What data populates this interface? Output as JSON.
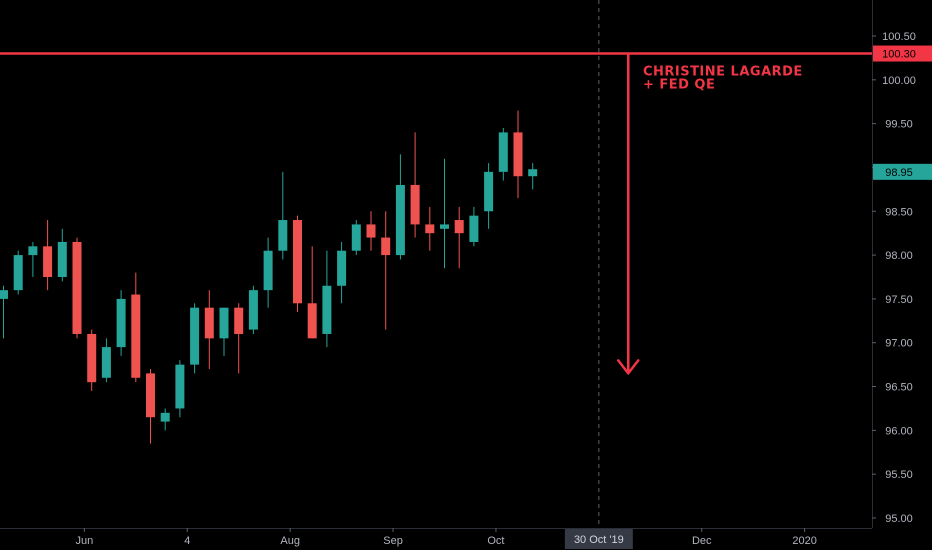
{
  "chart_data": {
    "type": "candlestick",
    "y_ticks": [
      "100.50",
      "100.00",
      "99.50",
      "99.00",
      "98.50",
      "98.00",
      "97.50",
      "97.00",
      "96.50",
      "96.00",
      "95.50",
      "95.00"
    ],
    "ylim": [
      94.95,
      101.1
    ],
    "x_ticks": [
      {
        "label": "Jun",
        "bar": 5.5
      },
      {
        "label": "4",
        "bar": 12.5
      },
      {
        "label": "Aug",
        "bar": 19.5
      },
      {
        "label": "Sep",
        "bar": 26.5
      },
      {
        "label": "Oct",
        "bar": 33.5
      },
      {
        "label": "Dec",
        "bar": 47.5
      },
      {
        "label": "2020",
        "bar": 54.5
      }
    ],
    "candles": [
      {
        "o": 97.5,
        "h": 97.65,
        "l": 97.05,
        "c": 97.6
      },
      {
        "o": 97.6,
        "h": 98.05,
        "l": 97.55,
        "c": 98.0
      },
      {
        "o": 98.0,
        "h": 98.15,
        "l": 97.75,
        "c": 98.1
      },
      {
        "o": 98.1,
        "h": 98.4,
        "l": 97.6,
        "c": 97.75
      },
      {
        "o": 97.75,
        "h": 98.3,
        "l": 97.7,
        "c": 98.15
      },
      {
        "o": 98.15,
        "h": 98.2,
        "l": 97.05,
        "c": 97.1
      },
      {
        "o": 97.1,
        "h": 97.15,
        "l": 96.45,
        "c": 96.55
      },
      {
        "o": 96.6,
        "h": 97.05,
        "l": 96.55,
        "c": 96.95
      },
      {
        "o": 96.95,
        "h": 97.6,
        "l": 96.85,
        "c": 97.5
      },
      {
        "o": 97.55,
        "h": 97.8,
        "l": 96.55,
        "c": 96.6
      },
      {
        "o": 96.65,
        "h": 96.7,
        "l": 95.85,
        "c": 96.15
      },
      {
        "o": 96.1,
        "h": 96.25,
        "l": 96.0,
        "c": 96.2
      },
      {
        "o": 96.25,
        "h": 96.8,
        "l": 96.15,
        "c": 96.75
      },
      {
        "o": 96.75,
        "h": 97.45,
        "l": 96.65,
        "c": 97.4
      },
      {
        "o": 97.4,
        "h": 97.6,
        "l": 96.7,
        "c": 97.05
      },
      {
        "o": 97.05,
        "h": 97.4,
        "l": 96.85,
        "c": 97.4
      },
      {
        "o": 97.4,
        "h": 97.45,
        "l": 96.65,
        "c": 97.1
      },
      {
        "o": 97.15,
        "h": 97.65,
        "l": 97.1,
        "c": 97.6
      },
      {
        "o": 97.6,
        "h": 98.2,
        "l": 97.4,
        "c": 98.05
      },
      {
        "o": 98.05,
        "h": 98.95,
        "l": 97.95,
        "c": 98.4
      },
      {
        "o": 98.4,
        "h": 98.45,
        "l": 97.35,
        "c": 97.45
      },
      {
        "o": 97.45,
        "h": 98.1,
        "l": 97.05,
        "c": 97.05
      },
      {
        "o": 97.1,
        "h": 98.05,
        "l": 96.95,
        "c": 97.65
      },
      {
        "o": 97.65,
        "h": 98.15,
        "l": 97.45,
        "c": 98.05
      },
      {
        "o": 98.05,
        "h": 98.4,
        "l": 98.0,
        "c": 98.35
      },
      {
        "o": 98.35,
        "h": 98.5,
        "l": 98.05,
        "c": 98.2
      },
      {
        "o": 98.2,
        "h": 98.5,
        "l": 97.15,
        "c": 98.0
      },
      {
        "o": 98.0,
        "h": 99.15,
        "l": 97.95,
        "c": 98.8
      },
      {
        "o": 98.8,
        "h": 99.4,
        "l": 98.2,
        "c": 98.35
      },
      {
        "o": 98.35,
        "h": 98.55,
        "l": 98.05,
        "c": 98.25
      },
      {
        "o": 98.3,
        "h": 99.1,
        "l": 97.85,
        "c": 98.35
      },
      {
        "o": 98.4,
        "h": 98.55,
        "l": 97.85,
        "c": 98.25
      },
      {
        "o": 98.15,
        "h": 98.55,
        "l": 98.1,
        "c": 98.45
      },
      {
        "o": 98.5,
        "h": 99.05,
        "l": 98.3,
        "c": 98.95
      },
      {
        "o": 98.95,
        "h": 99.45,
        "l": 98.85,
        "c": 99.4
      },
      {
        "o": 99.4,
        "h": 99.65,
        "l": 98.65,
        "c": 98.9
      },
      {
        "o": 98.9,
        "h": 99.05,
        "l": 98.75,
        "c": 98.98
      }
    ],
    "grid": false,
    "horizontal_line": {
      "value": 100.3,
      "label": "100.30"
    },
    "last_price": {
      "value": 98.95,
      "label": "98.95"
    },
    "crosshair": {
      "bar": 40.5,
      "label": "30 Oct '19"
    },
    "arrow": {
      "bar": 42.5,
      "from": 100.3,
      "to": 96.65
    },
    "annotation": {
      "lines": [
        "CHRISTINE LAGARDE",
        "+ FED QE"
      ],
      "bar": 43.5
    },
    "colors": {
      "up": "#26a69a",
      "down": "#ef5350",
      "line": "#f23645",
      "bg": "#000000",
      "axis_text": "#b2b5be"
    }
  }
}
